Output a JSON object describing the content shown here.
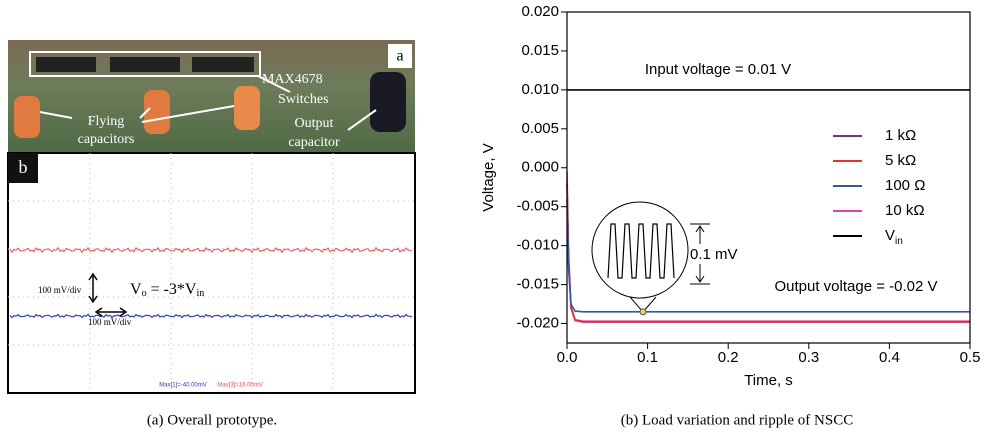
{
  "figure_a": {
    "photo_label": "a",
    "switches": [
      "MAX4678",
      "Switches"
    ],
    "flying": [
      "Flying",
      "capacitors"
    ],
    "output_cap": [
      "Output",
      "capacitor"
    ],
    "scope_label": "b",
    "vdiv": "100 mV/div",
    "hdiv": "100 mV/div",
    "formula": [
      "V",
      "o",
      " = -3*V",
      "in"
    ],
    "max1": "Max[1]=-40.00mV",
    "max3": "Max[3]=16.00mV",
    "caption": "(a) Overall prototype."
  },
  "caption_b": "(b) Load variation and ripple of NSCC",
  "chart_data": {
    "type": "line",
    "xlabel": "Time, s",
    "ylabel": "Voltage, V",
    "x": [
      0,
      0.002,
      0.005,
      0.01,
      0.02,
      0.5
    ],
    "series": [
      {
        "name": "1 kΩ",
        "color": "#7b2a8c",
        "values": [
          -0.002,
          -0.012,
          -0.018,
          -0.0196,
          -0.0198,
          -0.0198
        ]
      },
      {
        "name": "5 kΩ",
        "color": "#e8312a",
        "values": [
          -0.002,
          -0.012,
          -0.018,
          -0.0196,
          -0.0198,
          -0.0198
        ]
      },
      {
        "name": "100 Ω",
        "color": "#2c5aa8",
        "values": [
          -0.004,
          -0.013,
          -0.0175,
          -0.0184,
          -0.0185,
          -0.0185
        ]
      },
      {
        "name": "10 kΩ",
        "color": "#d940b0",
        "values": [
          -0.0005,
          -0.011,
          -0.0178,
          -0.0195,
          -0.0197,
          -0.0197
        ]
      },
      {
        "name": "Vin",
        "color": "#000000",
        "values": [
          0.01,
          0.01,
          0.01,
          0.01,
          0.01,
          0.01
        ]
      }
    ],
    "xlim": [
      0,
      0.5
    ],
    "xticks": [
      {
        "value": 0,
        "label": "0.0"
      },
      0.1,
      0.2,
      0.3,
      0.4,
      0.5
    ],
    "ylim": [
      -0.0225,
      0.02
    ],
    "yticks": [
      {
        "value": -0.02,
        "label": "-0.020"
      },
      {
        "value": -0.015,
        "label": "-0.015"
      },
      {
        "value": -0.01,
        "label": "-0.010"
      },
      {
        "value": -0.005,
        "label": "-0.005"
      },
      {
        "value": 0,
        "label": "0.000"
      },
      {
        "value": 0.005,
        "label": "0.005"
      },
      {
        "value": 0.01,
        "label": "0.010"
      },
      {
        "value": 0.015,
        "label": "0.015"
      },
      {
        "value": 0.02,
        "label": "0.020"
      }
    ],
    "annotations": [
      "Input voltage = 0.01 V",
      "Output voltage = -0.02 V",
      "0.1 mV"
    ]
  }
}
